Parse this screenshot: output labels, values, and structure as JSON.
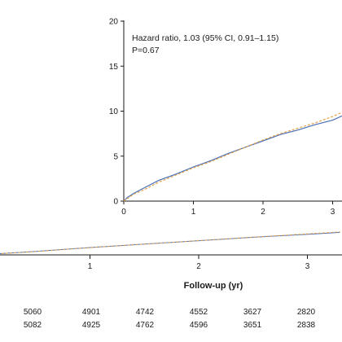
{
  "chart_data": [
    {
      "type": "line",
      "role": "main",
      "x": [
        0,
        1,
        2,
        3
      ],
      "xticks": [
        1,
        2,
        3
      ],
      "xlabel": "Follow-up (yr)",
      "series": [
        {
          "color": "#4a6fb5",
          "style": "solid",
          "x": [
            0,
            0.5,
            1,
            1.5,
            2,
            2.5,
            3,
            3.3
          ],
          "y": [
            0,
            0.35,
            0.75,
            1.1,
            1.45,
            1.8,
            2.1,
            2.3
          ]
        },
        {
          "color": "#e2a24a",
          "style": "dashed",
          "x": [
            0,
            0.5,
            1,
            1.5,
            2,
            2.5,
            3,
            3.3
          ],
          "y": [
            0,
            0.34,
            0.74,
            1.1,
            1.46,
            1.82,
            2.15,
            2.35
          ]
        }
      ]
    },
    {
      "type": "line",
      "role": "inset",
      "xlim": [
        0,
        3.2
      ],
      "ylim": [
        0,
        20
      ],
      "xticks": [
        0,
        1,
        2,
        3
      ],
      "yticks": [
        0,
        5,
        10,
        15,
        20
      ],
      "annotations": [
        "Hazard ratio, 1.03 (95% CI, 0.91–1.15)",
        "P=0.67"
      ],
      "series": [
        {
          "color": "#4a6fb5",
          "style": "solid",
          "x": [
            0,
            0.05,
            0.15,
            0.3,
            0.5,
            0.75,
            1.0,
            1.25,
            1.5,
            1.75,
            2.0,
            2.25,
            2.5,
            2.75,
            3.0,
            3.2
          ],
          "y": [
            0,
            0.4,
            0.9,
            1.5,
            2.3,
            3.0,
            3.8,
            4.5,
            5.3,
            6.0,
            6.7,
            7.4,
            7.9,
            8.5,
            9.0,
            9.7
          ]
        },
        {
          "color": "#e2a24a",
          "style": "dashed",
          "x": [
            0,
            0.05,
            0.15,
            0.3,
            0.5,
            0.75,
            1.0,
            1.25,
            1.5,
            1.75,
            2.0,
            2.25,
            2.5,
            2.75,
            3.0,
            3.2
          ],
          "y": [
            0,
            0.3,
            0.8,
            1.3,
            2.1,
            2.9,
            3.7,
            4.4,
            5.2,
            6.0,
            6.8,
            7.5,
            8.1,
            8.7,
            9.4,
            10.1
          ]
        }
      ]
    }
  ],
  "risk_table": {
    "rows": [
      [
        "5060",
        "4901",
        "4742",
        "4552",
        "3627",
        "2820"
      ],
      [
        "5082",
        "4925",
        "4762",
        "4596",
        "3651",
        "2838"
      ]
    ]
  }
}
